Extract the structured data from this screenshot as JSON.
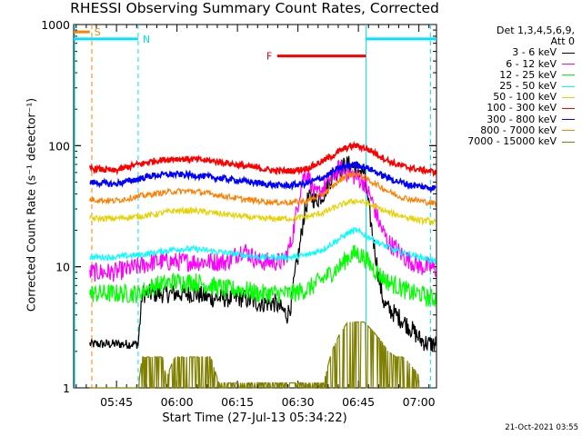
{
  "chart_data": {
    "type": "line",
    "title": "RHESSI Observing Summary Count Rates, Corrected",
    "xlabel": "Start Time (27-Jul-13 05:34:22)",
    "ylabel": "Corrected Count Rate (s⁻¹ detector⁻¹)",
    "y_scale": "log",
    "ylim": [
      1,
      1000
    ],
    "y_ticks": [
      "1",
      "10",
      "100",
      "1000"
    ],
    "xlim_minutes_after_start": [
      0,
      90
    ],
    "x_ticks": [
      {
        "label": "05:45",
        "minutes": 10.63
      },
      {
        "label": "06:00",
        "minutes": 25.63
      },
      {
        "label": "06:15",
        "minutes": 40.63
      },
      {
        "label": "06:30",
        "minutes": 55.63
      },
      {
        "label": "06:45",
        "minutes": 70.63
      },
      {
        "label": "07:00",
        "minutes": 85.63
      }
    ],
    "legend_header": [
      "Det 1,3,4,5,6,9,",
      "Att 0"
    ],
    "legend_position": "right",
    "grid": false,
    "series": [
      {
        "name": "3 - 6 keV",
        "color": "#000000",
        "x": [
          4,
          10,
          16,
          17,
          19,
          25,
          30,
          34,
          38,
          42,
          46,
          50,
          53,
          54,
          55,
          56,
          57,
          58,
          59,
          60,
          62,
          64,
          66,
          68,
          70,
          72,
          74,
          76,
          77,
          78,
          80,
          82,
          84,
          86,
          88,
          90
        ],
        "y": [
          2.3,
          2.3,
          2.3,
          6,
          6,
          6,
          6,
          5.5,
          5.5,
          5.5,
          5,
          5,
          4,
          5,
          9,
          14,
          25,
          35,
          38,
          35,
          40,
          55,
          65,
          70,
          65,
          60,
          20,
          7,
          5,
          4.5,
          4,
          3.5,
          3,
          2.5,
          2.3,
          2.3
        ]
      },
      {
        "name": "6 - 12 keV",
        "color": "#ff00ff",
        "x": [
          4,
          10,
          16,
          20,
          25,
          30,
          34,
          38,
          42,
          46,
          50,
          52,
          53,
          54,
          55,
          56,
          57,
          58,
          60,
          62,
          64,
          66,
          68,
          70,
          72,
          74,
          76,
          78,
          80,
          82,
          84,
          86,
          88,
          90
        ],
        "y": [
          9,
          9,
          10,
          11,
          11,
          11,
          11,
          11,
          14,
          11,
          11,
          11,
          13,
          16,
          25,
          40,
          55,
          60,
          38,
          45,
          55,
          65,
          60,
          55,
          50,
          35,
          22,
          16,
          14,
          12,
          11,
          10,
          10,
          9.5
        ]
      },
      {
        "name": "12 - 25 keV",
        "color": "#00ff00",
        "x": [
          4,
          10,
          16,
          20,
          25,
          30,
          34,
          38,
          42,
          46,
          50,
          54,
          58,
          62,
          64,
          66,
          68,
          70,
          72,
          74,
          76,
          78,
          80,
          82,
          84,
          86,
          88,
          90
        ],
        "y": [
          6,
          6,
          6,
          7,
          7.5,
          7.5,
          7,
          6.5,
          6.5,
          6,
          6,
          6,
          6.5,
          8,
          9,
          10,
          12,
          13,
          12,
          10,
          8.5,
          7.5,
          7,
          6.5,
          6,
          6,
          5.5,
          5.5
        ]
      },
      {
        "name": "25 - 50 keV",
        "color": "#00ffff",
        "x": [
          4,
          10,
          16,
          20,
          25,
          30,
          34,
          38,
          42,
          46,
          50,
          54,
          58,
          62,
          64,
          66,
          68,
          70,
          72,
          74,
          76,
          78,
          80,
          82,
          84,
          86,
          88,
          90
        ],
        "y": [
          12,
          12,
          12.5,
          13,
          14,
          14,
          13.5,
          13,
          12.5,
          12,
          12,
          12,
          12.5,
          14,
          15.5,
          17,
          19,
          20,
          18.5,
          17,
          15.5,
          14.5,
          13.5,
          13,
          12.5,
          12,
          11.5,
          11
        ]
      },
      {
        "name": "50 - 100 keV",
        "color": "#e6d200",
        "x": [
          4,
          10,
          16,
          20,
          25,
          30,
          34,
          38,
          42,
          46,
          50,
          54,
          58,
          62,
          64,
          66,
          68,
          70,
          72,
          74,
          76,
          78,
          80,
          82,
          84,
          86,
          88,
          90
        ],
        "y": [
          25,
          25,
          26,
          27,
          29,
          29,
          28,
          27,
          26,
          25,
          25,
          25,
          26,
          28,
          30,
          32,
          34,
          35,
          34,
          32,
          30,
          28,
          27,
          26,
          25,
          24,
          24,
          23
        ]
      },
      {
        "name": "100 - 300 keV",
        "color": "#ff0000",
        "x": [
          4,
          10,
          16,
          20,
          25,
          30,
          34,
          38,
          42,
          46,
          50,
          54,
          58,
          62,
          64,
          66,
          68,
          70,
          72,
          74,
          76,
          78,
          80,
          82,
          84,
          86,
          88,
          90
        ],
        "y": [
          65,
          62,
          70,
          75,
          78,
          77,
          75,
          72,
          68,
          65,
          62,
          62,
          65,
          75,
          82,
          90,
          97,
          100,
          96,
          90,
          82,
          75,
          70,
          67,
          65,
          63,
          62,
          60
        ]
      },
      {
        "name": "300 - 800 keV",
        "color": "#0000ff",
        "x": [
          4,
          10,
          16,
          20,
          25,
          30,
          34,
          38,
          42,
          46,
          50,
          54,
          58,
          62,
          64,
          66,
          68,
          70,
          72,
          74,
          76,
          78,
          80,
          82,
          84,
          86,
          88,
          90
        ],
        "y": [
          50,
          48,
          53,
          57,
          58,
          57,
          55,
          53,
          51,
          49,
          47,
          47,
          49,
          55,
          60,
          65,
          68,
          70,
          67,
          63,
          58,
          54,
          51,
          49,
          47,
          46,
          45,
          45
        ]
      },
      {
        "name": "800 - 7000 keV",
        "color": "#ff8000",
        "x": [
          4,
          10,
          16,
          20,
          25,
          30,
          34,
          38,
          42,
          46,
          50,
          54,
          58,
          62,
          64,
          66,
          68,
          70,
          72,
          74,
          76,
          78,
          80,
          82,
          84,
          86,
          88,
          90
        ],
        "y": [
          36,
          35,
          38,
          40,
          42,
          42,
          40,
          38,
          36,
          35,
          34,
          34,
          35,
          40,
          45,
          52,
          57,
          58,
          55,
          50,
          46,
          42,
          39,
          37,
          36,
          35,
          34,
          33
        ]
      },
      {
        "name": "7000 - 15000 keV",
        "color": "#808000",
        "x": [
          4,
          10,
          16,
          17,
          22,
          23,
          25,
          28,
          30,
          32,
          34,
          36,
          38,
          40,
          42,
          44,
          46,
          48,
          50,
          52,
          54,
          56,
          58,
          60,
          62,
          64,
          66,
          68,
          70,
          72,
          74,
          76,
          78,
          80,
          82,
          84,
          86
        ],
        "y": [
          1,
          1,
          1,
          1.8,
          1.8,
          1.2,
          1.8,
          1.8,
          1.8,
          1.8,
          1.8,
          1.1,
          1.1,
          1.1,
          1.1,
          1.1,
          1.1,
          1.1,
          1.1,
          1.1,
          1.1,
          1.1,
          1.1,
          1.1,
          1.1,
          2,
          2.8,
          3.5,
          3.5,
          3.5,
          3,
          2.5,
          2,
          1.8,
          1.8,
          1.5,
          1.2
        ]
      }
    ],
    "annotations": [
      {
        "label": "S",
        "color": "#ff8000",
        "x_start": 0,
        "x_end": 4,
        "y": 870
      },
      {
        "label": "N",
        "color": "#00e0ff",
        "x_start": 0,
        "x_end": 16,
        "y": 760
      },
      {
        "label": "F",
        "color": "#ff0000",
        "x_start": 50.5,
        "x_end": 72.5,
        "y": 550
      },
      {
        "label": "",
        "color": "#00e0ff",
        "x_start": 72.5,
        "x_end": 90,
        "y": 760
      }
    ],
    "vertical_markers": [
      {
        "x": 4.5,
        "color": "#ff8000",
        "dashed": true
      },
      {
        "x": 16,
        "color": "#00e0ff",
        "dashed": true
      },
      {
        "x": 72.5,
        "color": "#00e0ff",
        "dashed": false
      },
      {
        "x": 88.5,
        "color": "#00e0ff",
        "dashed": true
      }
    ]
  },
  "footer": "21-Oct-2021 03:55"
}
